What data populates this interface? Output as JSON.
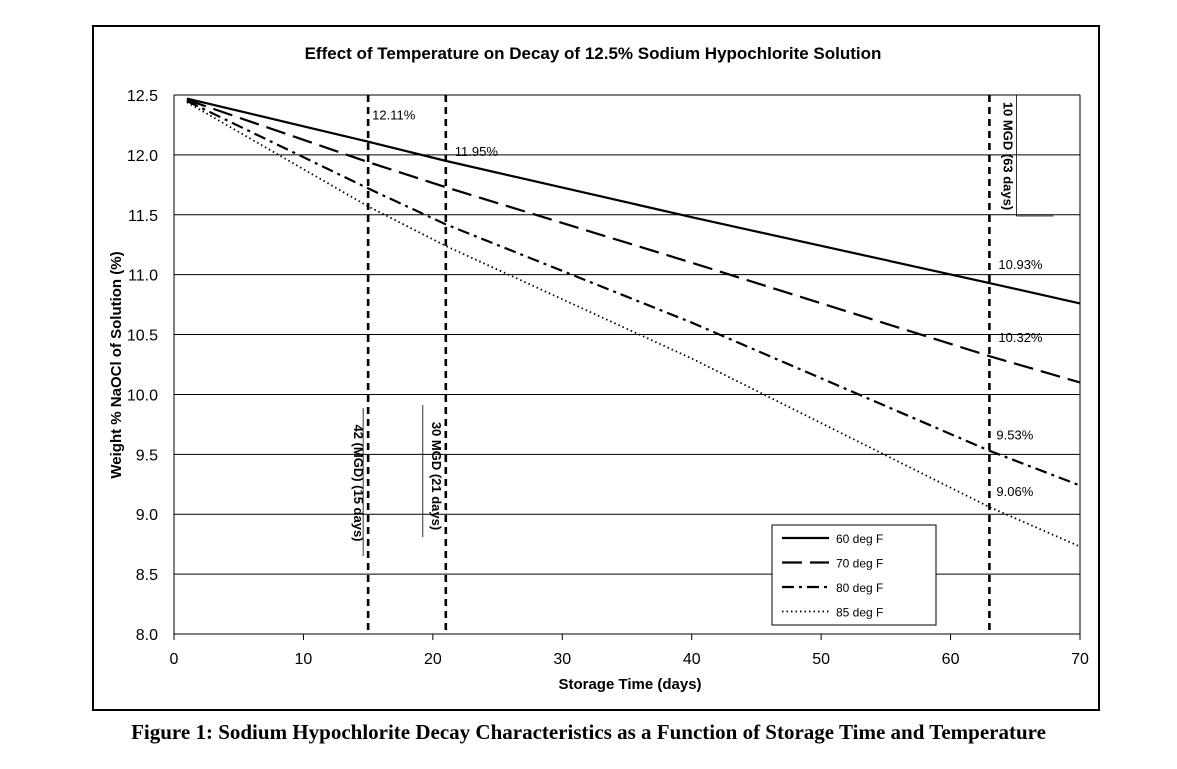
{
  "caption": "Figure 1: Sodium Hypochlorite Decay Characteristics as a Function of Storage Time and Temperature",
  "chart_data": {
    "type": "line",
    "title": "Effect of Temperature on Decay of 12.5% Sodium Hypochlorite Solution",
    "xlabel": "Storage Time (days)",
    "ylabel": "Weight % NaOCl of Solution (%)",
    "xlim": [
      0,
      70
    ],
    "ylim": [
      8.0,
      12.5
    ],
    "xticks": [
      0,
      10,
      20,
      30,
      40,
      50,
      60,
      70
    ],
    "xtick_labels": [
      "0",
      "10",
      "20",
      "30",
      "40",
      "50",
      "60",
      "70"
    ],
    "yticks": [
      8.0,
      8.5,
      9.0,
      9.5,
      10.0,
      10.5,
      11.0,
      11.5,
      12.0,
      12.5
    ],
    "ytick_labels": [
      "8.0",
      "8.5",
      "9.0",
      "9.5",
      "10.0",
      "10.5",
      "11.0",
      "11.5",
      "12.0",
      "12.5"
    ],
    "grid": "horizontal",
    "legend_position": "bottom-right",
    "series": [
      {
        "name": "60 deg F",
        "style": "solid",
        "x": [
          1,
          15,
          21,
          40,
          63,
          70
        ],
        "values": [
          12.47,
          12.11,
          11.95,
          11.48,
          10.93,
          10.76
        ]
      },
      {
        "name": "70 deg F",
        "style": "dashed",
        "x": [
          1,
          15,
          21,
          40,
          63,
          70
        ],
        "values": [
          12.46,
          11.94,
          11.73,
          11.1,
          10.32,
          10.1
        ]
      },
      {
        "name": "80 deg F",
        "style": "dashdot",
        "x": [
          1,
          15,
          21,
          40,
          63,
          70
        ],
        "values": [
          12.45,
          11.72,
          11.42,
          10.6,
          9.53,
          9.24
        ]
      },
      {
        "name": "85 deg F",
        "style": "dotted",
        "x": [
          1,
          15,
          21,
          40,
          63,
          70
        ],
        "values": [
          12.44,
          11.57,
          11.24,
          10.3,
          9.06,
          8.73
        ]
      }
    ],
    "vlines": [
      {
        "x": 15,
        "label": "42 (MGD) (15 days)"
      },
      {
        "x": 21,
        "label": "30 MGD (21 days)"
      },
      {
        "x": 63,
        "label": "10 MGD (63 days)"
      }
    ],
    "annotations": [
      {
        "text": "12.11%",
        "x": 15,
        "y": 12.11
      },
      {
        "text": "11.95%",
        "x": 21,
        "y": 11.95
      },
      {
        "text": "10.93%",
        "x": 63,
        "y": 10.93
      },
      {
        "text": "10.32%",
        "x": 63,
        "y": 10.32
      },
      {
        "text": "9.53%",
        "x": 63,
        "y": 9.53
      },
      {
        "text": "9.06%",
        "x": 63,
        "y": 9.06
      }
    ]
  }
}
